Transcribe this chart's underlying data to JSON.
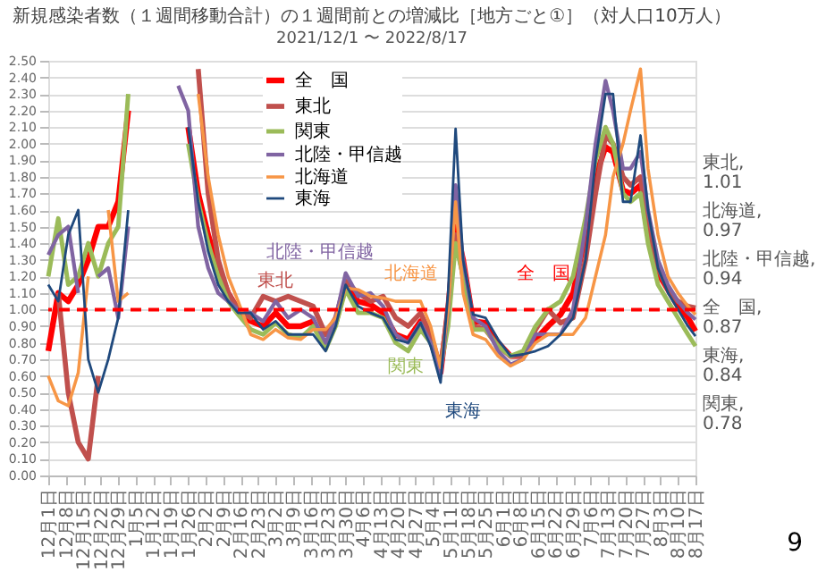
{
  "chart_data": {
    "type": "line",
    "title": "新規感染者数（１週間移動合計）の１週間前との増減比［地方ごと①］（対人口10万人）",
    "subtitle": "2021/12/1 〜 2022/8/17",
    "x": [
      "2021-12-01",
      "2021-12-05",
      "2021-12-09",
      "2021-12-13",
      "2021-12-17",
      "2021-12-21",
      "2021-12-25",
      "2021-12-29",
      "2022-01-02",
      "2022-01-10",
      "2022-01-18",
      "2022-01-22",
      "2022-01-26",
      "2022-01-30",
      "2022-02-03",
      "2022-02-07",
      "2022-02-11",
      "2022-02-15",
      "2022-02-20",
      "2022-02-25",
      "2022-03-02",
      "2022-03-07",
      "2022-03-12",
      "2022-03-17",
      "2022-03-22",
      "2022-03-26",
      "2022-03-30",
      "2022-04-04",
      "2022-04-09",
      "2022-04-14",
      "2022-04-19",
      "2022-04-24",
      "2022-04-29",
      "2022-05-03",
      "2022-05-07",
      "2022-05-10",
      "2022-05-13",
      "2022-05-16",
      "2022-05-20",
      "2022-05-25",
      "2022-05-30",
      "2022-06-04",
      "2022-06-09",
      "2022-06-14",
      "2022-06-19",
      "2022-06-24",
      "2022-06-29",
      "2022-07-04",
      "2022-07-08",
      "2022-07-12",
      "2022-07-15",
      "2022-07-19",
      "2022-07-22",
      "2022-07-26",
      "2022-07-29",
      "2022-08-02",
      "2022-08-06",
      "2022-08-10",
      "2022-08-14",
      "2022-08-17"
    ],
    "series": [
      {
        "name": "全　国",
        "color": "#ff0000",
        "values": [
          0.75,
          1.1,
          1.05,
          1.15,
          1.3,
          1.5,
          1.5,
          1.65,
          2.2,
          null,
          null,
          null,
          2.1,
          1.7,
          1.45,
          1.25,
          1.1,
          1.0,
          0.93,
          0.9,
          0.98,
          0.9,
          0.9,
          0.93,
          0.78,
          0.92,
          1.15,
          1.05,
          1.03,
          0.98,
          0.85,
          0.82,
          0.93,
          0.82,
          0.62,
          1.0,
          1.5,
          1.3,
          0.93,
          0.92,
          0.8,
          0.72,
          0.72,
          0.82,
          0.9,
          0.97,
          1.1,
          1.45,
          1.8,
          1.98,
          1.95,
          1.72,
          1.7,
          1.75,
          1.45,
          1.22,
          1.12,
          1.02,
          0.95,
          0.87
        ]
      },
      {
        "name": "東北",
        "color": "#c0504d",
        "values": [
          null,
          1.1,
          0.5,
          0.2,
          0.1,
          0.6,
          null,
          null,
          null,
          null,
          null,
          null,
          null,
          2.45,
          1.7,
          1.3,
          1.1,
          1.0,
          0.95,
          1.08,
          1.05,
          1.08,
          1.05,
          1.02,
          0.85,
          0.95,
          1.17,
          1.1,
          1.05,
          1.08,
          0.95,
          0.9,
          0.98,
          0.85,
          0.65,
          1.0,
          1.45,
          1.2,
          0.9,
          0.88,
          0.78,
          0.72,
          0.72,
          0.88,
          1.0,
          0.92,
          0.95,
          1.3,
          1.7,
          2.05,
          2.0,
          1.8,
          1.75,
          1.8,
          1.5,
          1.25,
          1.12,
          1.05,
          1.02,
          1.01
        ]
      },
      {
        "name": "関東",
        "color": "#9bbb59",
        "values": [
          1.2,
          1.55,
          1.15,
          1.2,
          1.4,
          1.2,
          1.4,
          1.5,
          2.3,
          null,
          null,
          null,
          2.0,
          1.65,
          1.4,
          1.2,
          1.05,
          0.97,
          0.88,
          0.85,
          0.92,
          0.85,
          0.83,
          0.9,
          0.76,
          0.9,
          1.12,
          0.98,
          0.98,
          0.95,
          0.8,
          0.75,
          0.88,
          0.8,
          0.65,
          0.9,
          1.4,
          1.2,
          0.88,
          0.88,
          0.78,
          0.72,
          0.75,
          0.9,
          1.0,
          1.05,
          1.2,
          1.55,
          1.9,
          2.1,
          2.0,
          1.7,
          1.65,
          1.7,
          1.4,
          1.15,
          1.05,
          0.95,
          0.85,
          0.78
        ]
      },
      {
        "name": "北陸・甲信越",
        "color": "#8064a2",
        "values": [
          1.33,
          1.45,
          1.5,
          1.1,
          null,
          1.2,
          1.25,
          0.95,
          1.5,
          null,
          null,
          2.35,
          2.2,
          1.5,
          1.25,
          1.1,
          1.05,
          1.0,
          0.98,
          0.93,
          1.05,
          0.95,
          1.0,
          0.95,
          0.8,
          0.95,
          1.22,
          1.08,
          1.1,
          1.02,
          0.85,
          0.8,
          0.92,
          0.8,
          0.6,
          1.0,
          1.75,
          1.3,
          0.95,
          0.9,
          0.75,
          0.67,
          0.7,
          0.85,
          0.85,
          0.85,
          1.0,
          1.5,
          2.0,
          2.38,
          2.2,
          1.85,
          1.85,
          1.95,
          1.6,
          1.3,
          1.15,
          1.05,
          0.98,
          0.94
        ]
      },
      {
        "name": "北海道",
        "color": "#f79646",
        "values": [
          0.6,
          0.45,
          0.42,
          0.62,
          1.2,
          null,
          1.6,
          1.05,
          1.1,
          null,
          null,
          null,
          null,
          2.3,
          1.8,
          1.45,
          1.2,
          1.05,
          0.85,
          0.82,
          0.88,
          0.83,
          0.82,
          0.88,
          0.88,
          0.95,
          1.13,
          1.12,
          1.08,
          1.07,
          1.05,
          1.05,
          1.05,
          0.9,
          0.65,
          1.0,
          1.65,
          1.1,
          0.85,
          0.82,
          0.72,
          0.66,
          0.7,
          0.8,
          0.85,
          0.85,
          0.85,
          0.95,
          1.2,
          1.45,
          1.8,
          2.0,
          2.2,
          2.45,
          1.85,
          1.45,
          1.2,
          1.1,
          1.02,
          0.97
        ]
      },
      {
        "name": "東海",
        "color": "#1f497d",
        "values": [
          1.15,
          1.05,
          1.45,
          1.6,
          0.7,
          0.5,
          0.7,
          0.95,
          1.6,
          null,
          null,
          null,
          2.1,
          1.65,
          1.35,
          1.15,
          1.05,
          0.98,
          0.98,
          0.88,
          0.93,
          0.85,
          0.85,
          0.85,
          0.75,
          0.9,
          1.15,
          1.02,
          0.98,
          0.95,
          0.82,
          0.8,
          0.92,
          0.78,
          0.56,
          1.1,
          2.09,
          1.3,
          0.97,
          0.95,
          0.82,
          0.72,
          0.73,
          0.75,
          0.78,
          0.85,
          0.95,
          1.3,
          1.9,
          2.3,
          2.3,
          1.65,
          1.65,
          2.05,
          1.6,
          1.25,
          1.1,
          1.0,
          0.9,
          0.84
        ]
      }
    ],
    "xlim": [
      "2021-12-01",
      "2022-08-17"
    ],
    "xticks": [
      {
        "value": "2021-12-01",
        "label": "12月1日"
      },
      {
        "value": "2021-12-08",
        "label": "12月8日"
      },
      {
        "value": "2021-12-15",
        "label": "12月15日"
      },
      {
        "value": "2021-12-22",
        "label": "12月22日"
      },
      {
        "value": "2021-12-29",
        "label": "12月29日"
      },
      {
        "value": "2022-01-05",
        "label": "1月5日"
      },
      {
        "value": "2022-01-12",
        "label": "1月12日"
      },
      {
        "value": "2022-01-19",
        "label": "1月19日"
      },
      {
        "value": "2022-01-26",
        "label": "1月26日"
      },
      {
        "value": "2022-02-02",
        "label": "2月2日"
      },
      {
        "value": "2022-02-09",
        "label": "2月9日"
      },
      {
        "value": "2022-02-16",
        "label": "2月16日"
      },
      {
        "value": "2022-02-23",
        "label": "2月23日"
      },
      {
        "value": "2022-03-02",
        "label": "3月2日"
      },
      {
        "value": "2022-03-09",
        "label": "3月9日"
      },
      {
        "value": "2022-03-16",
        "label": "3月16日"
      },
      {
        "value": "2022-03-23",
        "label": "3月23日"
      },
      {
        "value": "2022-03-30",
        "label": "3月30日"
      },
      {
        "value": "2022-04-06",
        "label": "4月6日"
      },
      {
        "value": "2022-04-13",
        "label": "4月13日"
      },
      {
        "value": "2022-04-20",
        "label": "4月20日"
      },
      {
        "value": "2022-04-27",
        "label": "4月27日"
      },
      {
        "value": "2022-05-04",
        "label": "5月4日"
      },
      {
        "value": "2022-05-11",
        "label": "5月11日"
      },
      {
        "value": "2022-05-18",
        "label": "5月18日"
      },
      {
        "value": "2022-05-25",
        "label": "5月25日"
      },
      {
        "value": "2022-06-01",
        "label": "6月1日"
      },
      {
        "value": "2022-06-08",
        "label": "6月8日"
      },
      {
        "value": "2022-06-15",
        "label": "6月15日"
      },
      {
        "value": "2022-06-22",
        "label": "6月22日"
      },
      {
        "value": "2022-06-29",
        "label": "6月29日"
      },
      {
        "value": "2022-07-06",
        "label": "7月6日"
      },
      {
        "value": "2022-07-13",
        "label": "7月13日"
      },
      {
        "value": "2022-07-20",
        "label": "7月20日"
      },
      {
        "value": "2022-07-27",
        "label": "7月27日"
      },
      {
        "value": "2022-08-03",
        "label": "8月3日"
      },
      {
        "value": "2022-08-10",
        "label": "8月10日"
      },
      {
        "value": "2022-08-17",
        "label": "8月17日"
      }
    ],
    "ylim": [
      0,
      2.5
    ],
    "yticks": [
      {
        "value": 0,
        "label": "0.00"
      },
      {
        "value": 0.1,
        "label": "0.10"
      },
      {
        "value": 0.2,
        "label": "0.20"
      },
      {
        "value": 0.3,
        "label": "0.30"
      },
      {
        "value": 0.4,
        "label": "0.40"
      },
      {
        "value": 0.5,
        "label": "0.50"
      },
      {
        "value": 0.6,
        "label": "0.60"
      },
      {
        "value": 0.7,
        "label": "0.70"
      },
      {
        "value": 0.8,
        "label": "0.80"
      },
      {
        "value": 0.9,
        "label": "0.90"
      },
      {
        "value": 1.0,
        "label": "1.00"
      },
      {
        "value": 1.1,
        "label": "1.10"
      },
      {
        "value": 1.2,
        "label": "1.20"
      },
      {
        "value": 1.3,
        "label": "1.30"
      },
      {
        "value": 1.4,
        "label": "1.40"
      },
      {
        "value": 1.5,
        "label": "1.50"
      },
      {
        "value": 1.6,
        "label": "1.60"
      },
      {
        "value": 1.7,
        "label": "1.70"
      },
      {
        "value": 1.8,
        "label": "1.80"
      },
      {
        "value": 1.9,
        "label": "1.90"
      },
      {
        "value": 2.0,
        "label": "2.00"
      },
      {
        "value": 2.1,
        "label": "2.10"
      },
      {
        "value": 2.2,
        "label": "2.20"
      },
      {
        "value": 2.3,
        "label": "2.30"
      },
      {
        "value": 2.4,
        "label": "2.40"
      },
      {
        "value": 2.5,
        "label": "2.50"
      }
    ],
    "ref_lines": [
      {
        "axis": "y",
        "value": 1.0,
        "color": "#ff0000",
        "line_style": "dashed"
      }
    ],
    "annotations": [
      "東北, 1.01",
      "北海道, 0.97",
      "北陸・甲信越, 0.94",
      "全　国, 0.87",
      "東海, 0.84",
      "関東, 0.78",
      "9"
    ],
    "grid": "y",
    "legend": "top",
    "marker": "none",
    "line_style": "solid"
  }
}
